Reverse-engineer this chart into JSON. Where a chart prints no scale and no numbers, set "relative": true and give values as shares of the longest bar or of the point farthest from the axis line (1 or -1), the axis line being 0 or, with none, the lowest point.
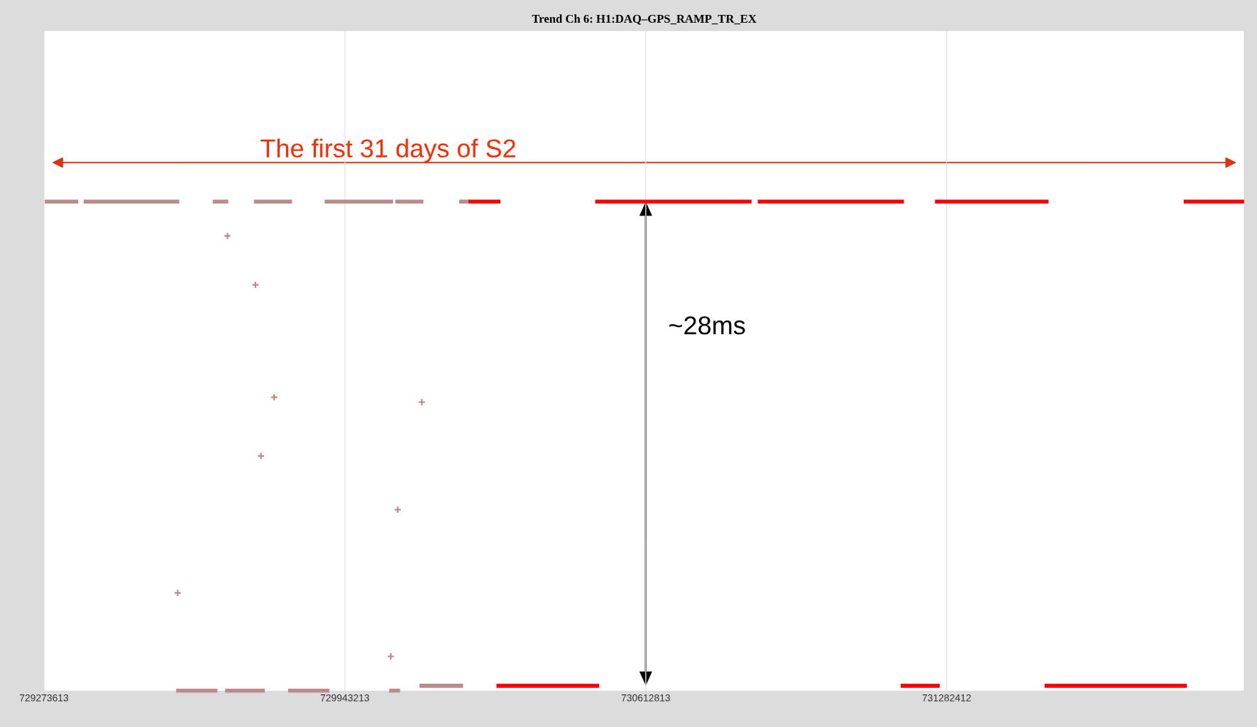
{
  "chart_data": {
    "type": "line",
    "title": "Trend Ch 6: H1:DAQ–GPS_RAMP_TR_EX",
    "relative": true,
    "grid": "x",
    "marker": "none",
    "line_style": "solid",
    "xlim": [
      729273613,
      731945076
    ],
    "xticks": [
      729273613,
      729943213,
      730612813,
      731282412
    ],
    "annotations": [
      "The first 31 days of S2",
      "~28ms"
    ],
    "series": [
      {
        "color": "#bc8a8a",
        "x": [
          729275343,
          729349743,
          729355000,
          729361855,
          729574673,
          729610000,
          729649073,
          729683678,
          729710000,
          729740775,
          729825556,
          729860000,
          729898224,
          730050474,
          730053000,
          730055665,
          730117953,
          730160000,
          730197544,
          730223497
        ],
        "values": [
          1,
          1,
          null,
          1,
          1,
          null,
          1,
          1,
          null,
          1,
          1,
          null,
          1,
          1,
          null,
          1,
          1,
          null,
          1,
          1
        ]
      },
      {
        "color": "#bc8a8a",
        "x": [
          729567752,
          729659454,
          729668000,
          729676757,
          729764998,
          729790000,
          729816905,
          729908607,
          729970000,
          730041823,
          730066046
        ],
        "values": [
          0,
          0,
          null,
          0,
          0,
          null,
          0,
          0,
          null,
          0,
          0
        ]
      },
      {
        "color": "#bc8a8a",
        "x": [
          730109302,
          730206194
        ],
        "values": [
          0.01,
          0.01
        ]
      },
      {
        "color": "#bc8a8a",
        "type": "scatter",
        "marker": "cross",
        "x": [
          729571213,
          729681947,
          729744235,
          729756348,
          729785761,
          730045283,
          730060855,
          730114493
        ],
        "values": [
          0.2,
          0.93,
          0.83,
          0.48,
          0.6,
          0.07,
          0.37,
          0.59
        ]
      },
      {
        "color": "#ff0000",
        "x": [
          730218306,
          730289245,
          730400000,
          730500333,
          730848109,
          730855000,
          730861951,
          731187234,
          731220000,
          731256443,
          731509057,
          731650000,
          731810118,
          731945076
        ],
        "values": [
          1,
          1,
          null,
          1,
          1,
          null,
          1,
          1,
          null,
          1,
          1,
          null,
          1,
          1
        ]
      },
      {
        "color": "#ff0000",
        "x": [
          730280594,
          730509034,
          730850000,
          731180313,
          731266825,
          731380000,
          731500406,
          731817039
        ],
        "values": [
          0.01,
          0.01,
          null,
          0.01,
          0.01,
          null,
          0.01,
          0.01
        ]
      }
    ]
  }
}
